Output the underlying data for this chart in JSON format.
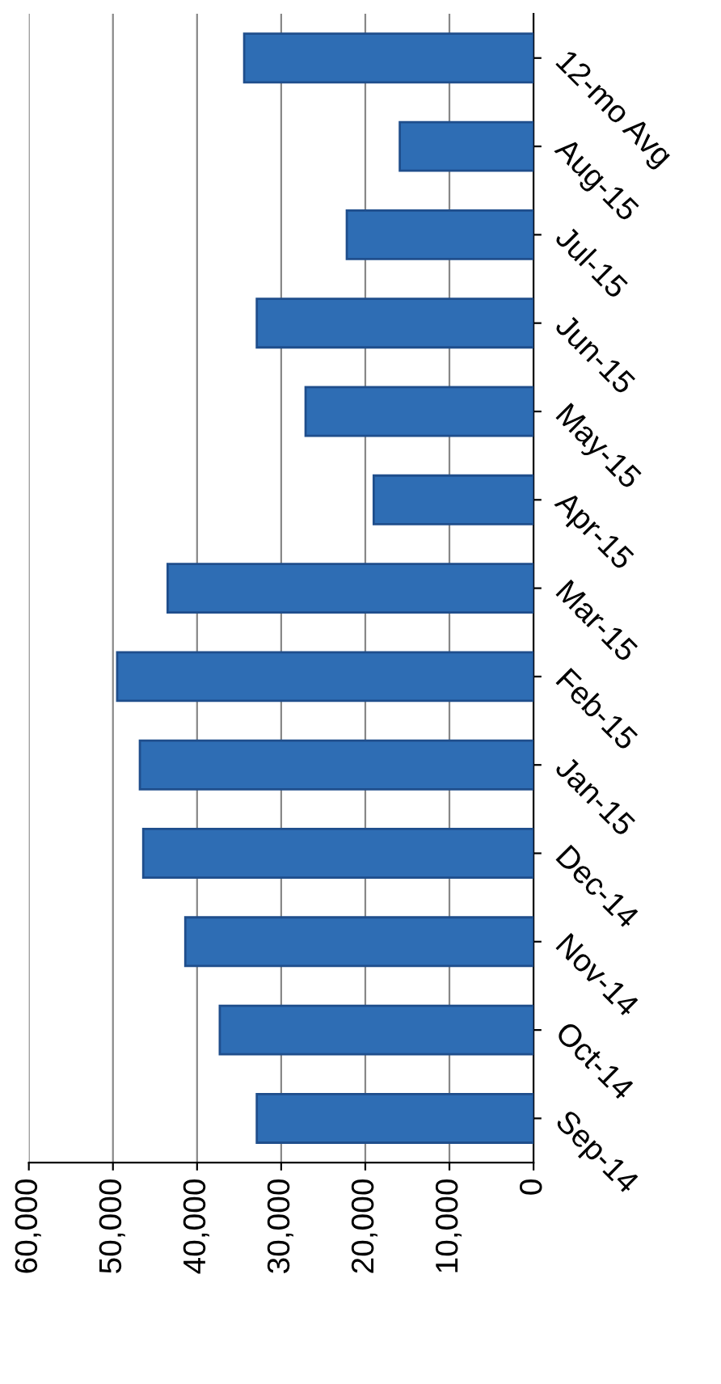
{
  "chart_data": {
    "type": "bar",
    "orientation": "horizontal",
    "categories": [
      "12-mo Avg",
      "Aug-15",
      "Jul-15",
      "Jun-15",
      "May-15",
      "Apr-15",
      "Mar-15",
      "Feb-15",
      "Jan-15",
      "Dec-14",
      "Nov-14",
      "Oct-14",
      "Sep-14"
    ],
    "values": [
      34400,
      15900,
      22200,
      32900,
      27100,
      19000,
      43500,
      49500,
      46800,
      46400,
      41400,
      37300,
      32900
    ],
    "color": "#2e6db4",
    "xlim": [
      60000,
      0
    ],
    "xticks": [
      {
        "value": 60000,
        "label": "60,000"
      },
      {
        "value": 50000,
        "label": "50,000"
      },
      {
        "value": 40000,
        "label": "40,000"
      },
      {
        "value": 30000,
        "label": "30,000"
      },
      {
        "value": 20000,
        "label": "20,000"
      },
      {
        "value": 10000,
        "label": "10,000"
      },
      {
        "value": 0,
        "label": "0"
      }
    ],
    "grid": "x",
    "legend": false
  }
}
